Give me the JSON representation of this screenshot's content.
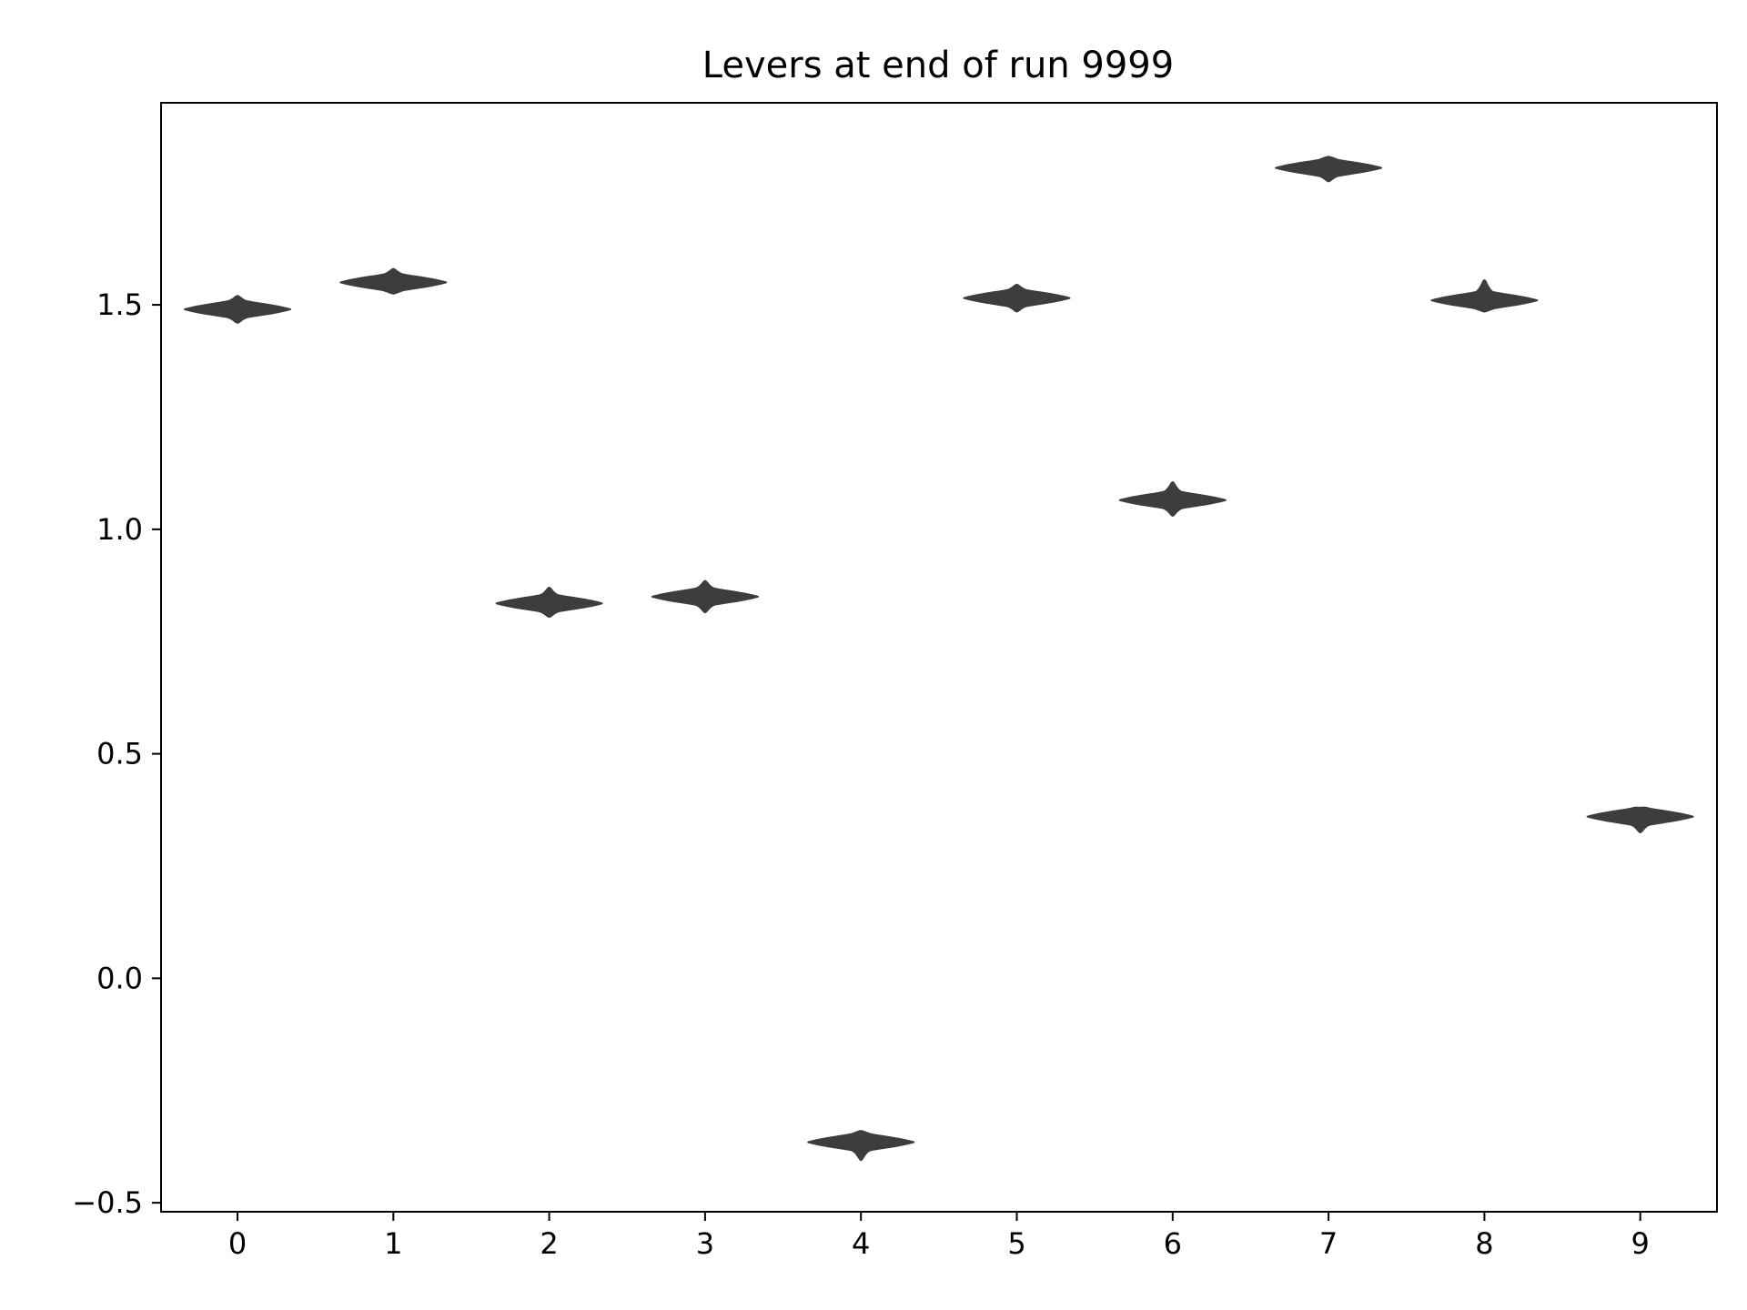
{
  "chart_data": {
    "type": "violin",
    "title": "Levers at end of run 9999",
    "xlabel": "",
    "ylabel": "",
    "categories": [
      "0",
      "1",
      "2",
      "3",
      "4",
      "5",
      "6",
      "7",
      "8",
      "9"
    ],
    "values": [
      1.49,
      1.55,
      0.835,
      0.85,
      -0.365,
      1.515,
      1.065,
      1.805,
      1.51,
      0.36
    ],
    "ranges": [
      [
        1.46,
        1.52
      ],
      [
        1.525,
        1.58
      ],
      [
        0.805,
        0.87
      ],
      [
        0.815,
        0.885
      ],
      [
        -0.405,
        -0.34
      ],
      [
        1.485,
        1.545
      ],
      [
        1.03,
        1.105
      ],
      [
        1.775,
        1.83
      ],
      [
        1.485,
        1.555
      ],
      [
        0.325,
        0.38
      ]
    ],
    "ylim": [
      -0.52,
      1.95
    ],
    "yticks": [
      {
        "value": -0.5,
        "label": "−0.5"
      },
      {
        "value": 0.0,
        "label": "0.0"
      },
      {
        "value": 0.5,
        "label": "0.5"
      },
      {
        "value": 1.0,
        "label": "1.0"
      },
      {
        "value": 1.5,
        "label": "1.5"
      }
    ],
    "grid": false,
    "legend": "none",
    "color": "#3d3d3d"
  }
}
